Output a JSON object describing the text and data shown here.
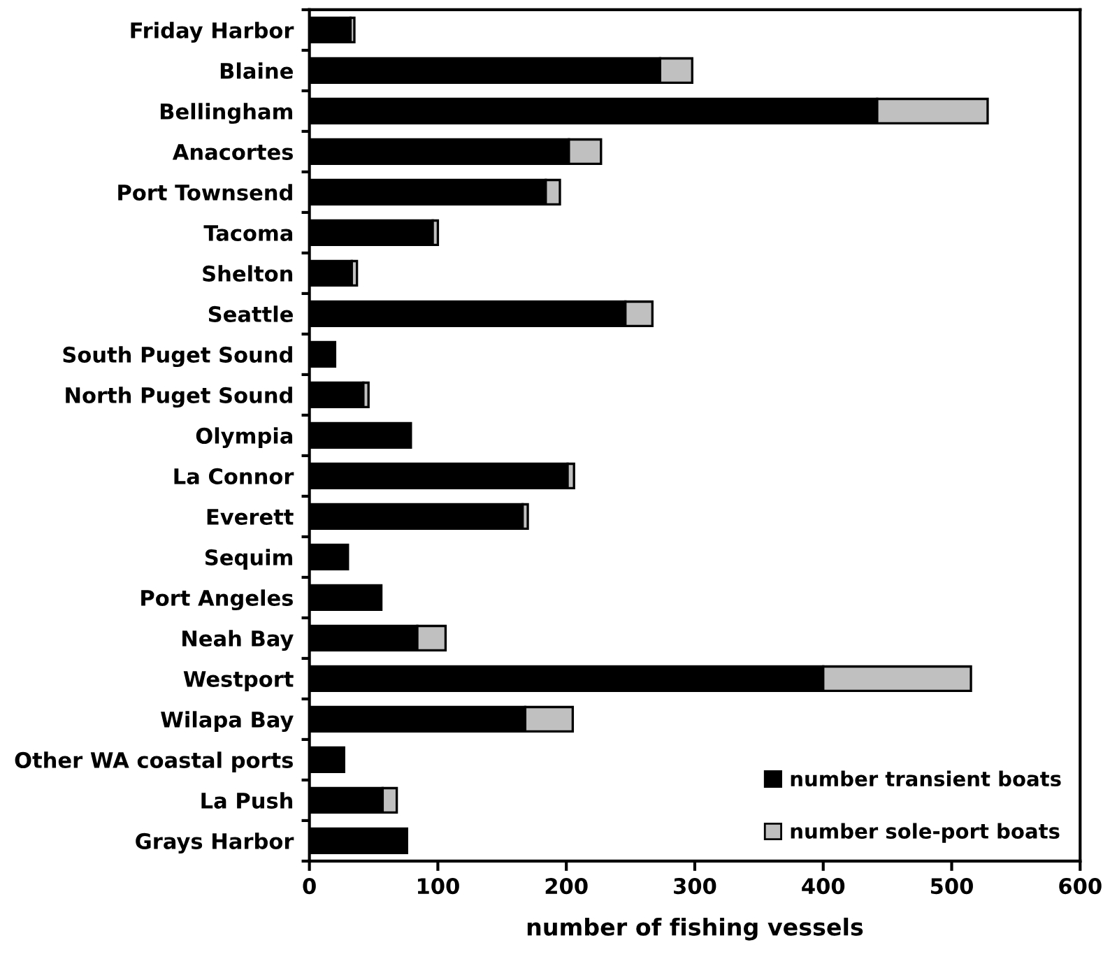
{
  "chart_data": {
    "type": "bar",
    "orientation": "horizontal",
    "stacked": true,
    "categories": [
      "Friday Harbor",
      "Blaine",
      "Bellingham",
      "Anacortes",
      "Port Townsend",
      "Tacoma",
      "Shelton",
      "Seattle",
      "South Puget Sound",
      "North Puget Sound",
      "Olympia",
      "La Connor",
      "Everett",
      "Sequim",
      "Port Angeles",
      "Neah Bay",
      "Westport",
      "Wilapa Bay",
      "Other WA coastal ports",
      "La Push",
      "Grays Harbor"
    ],
    "series": [
      {
        "name": "number transient boats",
        "color": "#000000",
        "values": [
          32,
          273,
          442,
          202,
          184,
          96,
          33,
          246,
          20,
          42,
          79,
          201,
          166,
          30,
          56,
          84,
          400,
          168,
          27,
          57,
          76
        ]
      },
      {
        "name": "number sole-port boats",
        "color": "#c0c0c0",
        "values": [
          3,
          25,
          86,
          25,
          11,
          4,
          4,
          21,
          0,
          4,
          0,
          5,
          4,
          0,
          0,
          22,
          115,
          37,
          0,
          11,
          0
        ]
      }
    ],
    "xlabel": "number of fishing vessels",
    "xlim": [
      0,
      600
    ],
    "xticks": [
      0,
      100,
      200,
      300,
      400,
      500,
      600
    ],
    "grid": false,
    "legend": "bottom right"
  }
}
